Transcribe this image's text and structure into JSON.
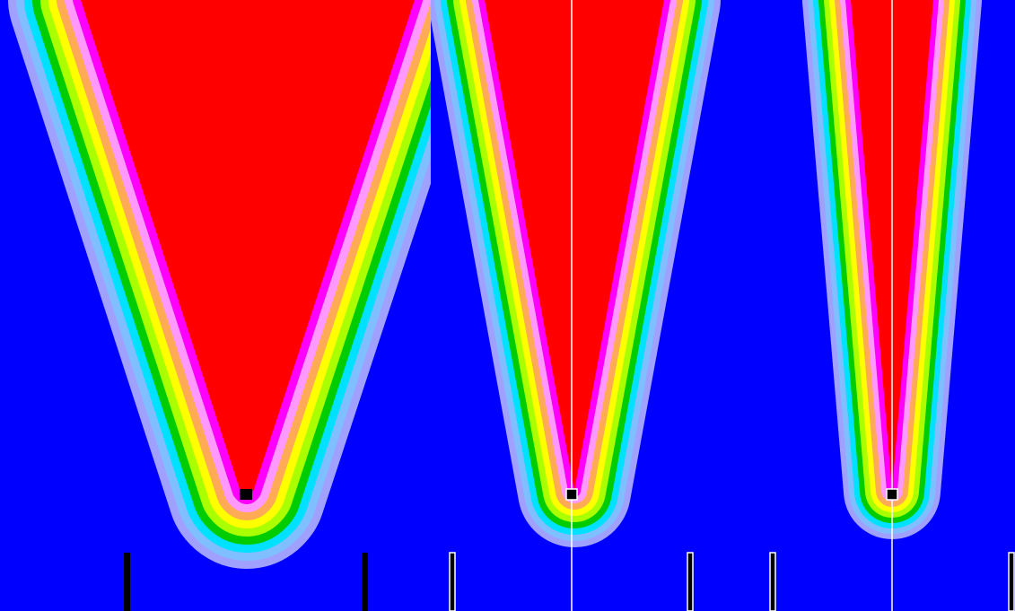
{
  "colors": {
    "background": "#0000ff",
    "core": "#ff0000",
    "bands": [
      "#ff00ff",
      "#ff99ff",
      "#ffaa55",
      "#ffff00",
      "#aaff00",
      "#00cc00",
      "#00e0ff",
      "#7fbfff",
      "#a0a0ff"
    ],
    "source_marker": "#000000",
    "guide_line": "#ffffff",
    "marker_dark": "#000000",
    "marker_light": "#ffffff"
  },
  "panels": [
    {
      "id": "panel-1",
      "label": "",
      "shape": "wide-cone",
      "has_center_line": false,
      "bar_style": "dark"
    },
    {
      "id": "panel-2",
      "label": "",
      "shape": "narrow-cone",
      "has_center_line": true,
      "bar_style": "light"
    },
    {
      "id": "panel-3",
      "label": "",
      "shape": "narrowest-cone",
      "has_center_line": true,
      "bar_style": "light"
    }
  ]
}
